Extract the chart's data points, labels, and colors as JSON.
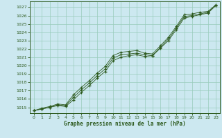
{
  "title": "Graphe pression niveau de la mer (hPa)",
  "bg_color": "#cce8f0",
  "grid_color": "#99ccbb",
  "line_color": "#2d5a1e",
  "xlim": [
    -0.5,
    23.5
  ],
  "ylim": [
    1014.3,
    1027.7
  ],
  "yticks": [
    1015,
    1016,
    1017,
    1018,
    1019,
    1020,
    1021,
    1022,
    1023,
    1024,
    1025,
    1026,
    1027
  ],
  "xticks": [
    0,
    1,
    2,
    3,
    4,
    5,
    6,
    7,
    8,
    9,
    10,
    11,
    12,
    13,
    14,
    15,
    16,
    17,
    18,
    19,
    20,
    21,
    22,
    23
  ],
  "series1": [
    1014.6,
    1014.8,
    1015.0,
    1015.2,
    1015.1,
    1015.9,
    1016.8,
    1017.6,
    1018.5,
    1019.3,
    1020.6,
    1021.0,
    1021.2,
    1021.3,
    1021.1,
    1021.2,
    1022.1,
    1023.0,
    1024.3,
    1025.7,
    1025.9,
    1026.1,
    1026.3,
    1027.2
  ],
  "series2": [
    1014.6,
    1014.8,
    1015.0,
    1015.3,
    1015.2,
    1016.2,
    1017.1,
    1017.9,
    1018.8,
    1019.6,
    1020.9,
    1021.3,
    1021.4,
    1021.5,
    1021.3,
    1021.2,
    1022.2,
    1023.2,
    1024.5,
    1025.9,
    1026.0,
    1026.2,
    1026.4,
    1027.2
  ],
  "series3": [
    1014.6,
    1014.9,
    1015.1,
    1015.4,
    1015.3,
    1016.5,
    1017.4,
    1018.2,
    1019.1,
    1019.9,
    1021.2,
    1021.6,
    1021.7,
    1021.8,
    1021.5,
    1021.4,
    1022.4,
    1023.4,
    1024.7,
    1026.1,
    1026.2,
    1026.4,
    1026.5,
    1027.3
  ]
}
